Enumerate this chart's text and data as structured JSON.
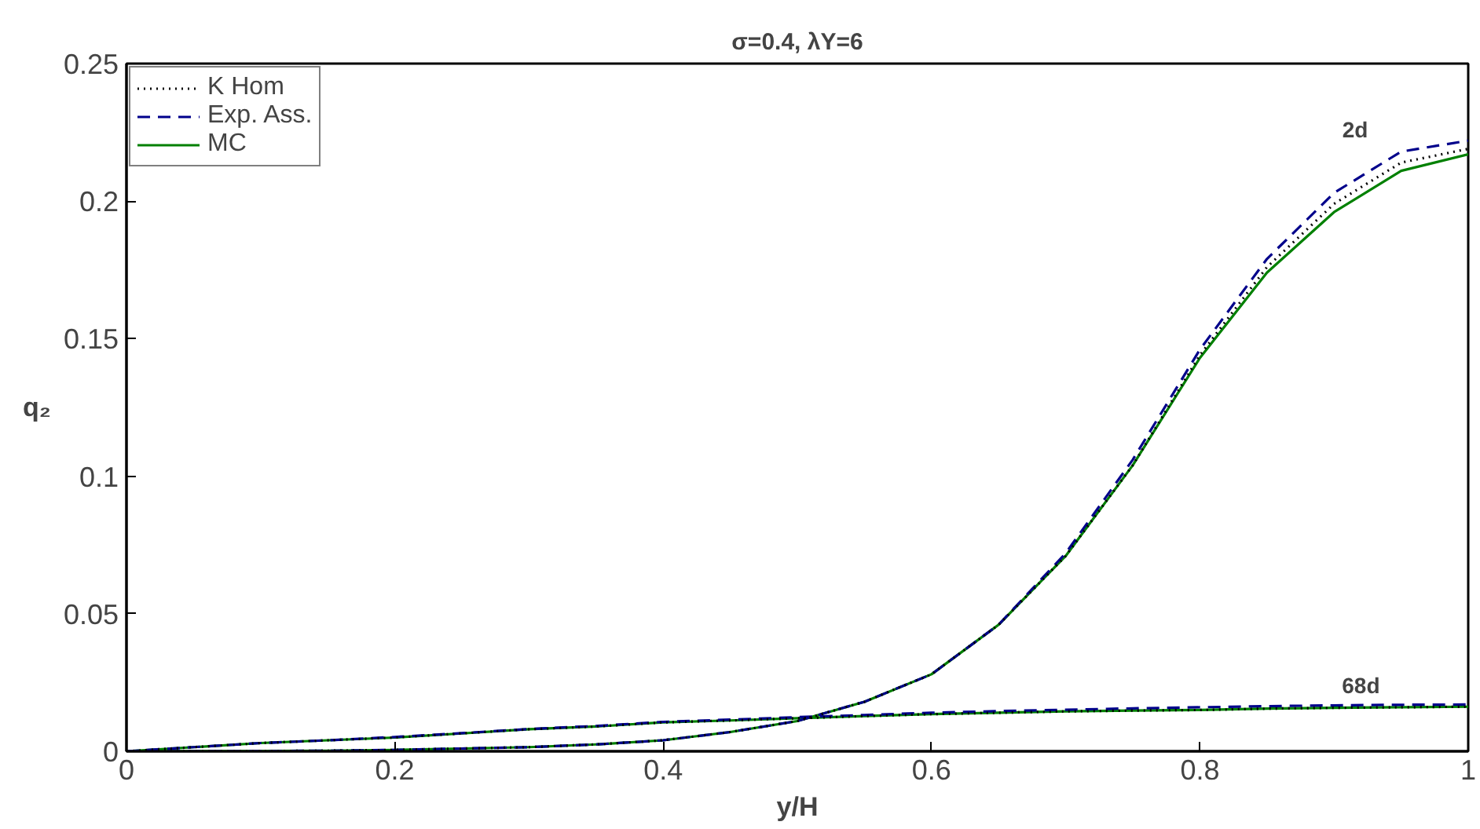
{
  "chart_data": {
    "type": "line",
    "title": "σ=0.4, λY=6",
    "xlabel": "y/H",
    "ylabel": "q₂",
    "x": [
      0,
      0.05,
      0.1,
      0.15,
      0.2,
      0.25,
      0.3,
      0.35,
      0.4,
      0.45,
      0.5,
      0.55,
      0.6,
      0.65,
      0.7,
      0.75,
      0.8,
      0.85,
      0.9,
      0.95,
      1.0
    ],
    "series": [
      {
        "name": "K Hom",
        "color": "#000000",
        "line_style": "dotted",
        "values": [
          0,
          0,
          0.0001,
          0.0002,
          0.0005,
          0.001,
          0.0015,
          0.0025,
          0.004,
          0.007,
          0.011,
          0.018,
          0.028,
          0.046,
          0.071,
          0.104,
          0.144,
          0.176,
          0.199,
          0.214,
          0.219
        ]
      },
      {
        "name": "Exp. Ass.",
        "color": "#00008b",
        "line_style": "dashed",
        "values": [
          0,
          0,
          0.0001,
          0.0002,
          0.0005,
          0.001,
          0.0015,
          0.0025,
          0.004,
          0.007,
          0.011,
          0.018,
          0.028,
          0.046,
          0.072,
          0.106,
          0.146,
          0.179,
          0.203,
          0.218,
          0.222
        ]
      },
      {
        "name": "MC",
        "color": "#008000",
        "line_style": "solid",
        "values": [
          0,
          0,
          0.0001,
          0.0002,
          0.0005,
          0.001,
          0.0015,
          0.0025,
          0.004,
          0.007,
          0.011,
          0.018,
          0.028,
          0.046,
          0.071,
          0.104,
          0.143,
          0.174,
          0.196,
          0.211,
          0.217
        ]
      },
      {
        "color": "#000000",
        "line_style": "dotted",
        "values": [
          0,
          0.0015,
          0.003,
          0.004,
          0.005,
          0.0065,
          0.008,
          0.009,
          0.0105,
          0.0112,
          0.012,
          0.0128,
          0.0135,
          0.014,
          0.0145,
          0.0148,
          0.015,
          0.0155,
          0.0158,
          0.016,
          0.0162
        ]
      },
      {
        "color": "#00008b",
        "line_style": "dashed",
        "values": [
          0,
          0.0015,
          0.003,
          0.004,
          0.0052,
          0.0066,
          0.0081,
          0.0092,
          0.0107,
          0.0115,
          0.0124,
          0.0132,
          0.014,
          0.0146,
          0.0151,
          0.0156,
          0.016,
          0.0164,
          0.0167,
          0.0169,
          0.017
        ]
      },
      {
        "color": "#008000",
        "line_style": "solid",
        "values": [
          0,
          0.0015,
          0.003,
          0.004,
          0.005,
          0.0065,
          0.008,
          0.009,
          0.0105,
          0.0112,
          0.012,
          0.0128,
          0.0135,
          0.014,
          0.0145,
          0.0148,
          0.015,
          0.0155,
          0.0158,
          0.016,
          0.0162
        ]
      }
    ],
    "annotations": [
      "2d",
      {
        "text": "68d",
        "x": 0.92,
        "y": 0.017
      }
    ],
    "xlim": [
      0,
      1
    ],
    "ylim": [
      0,
      0.25
    ],
    "xticks": [
      0,
      0.2,
      0.4,
      0.6,
      0.8,
      1
    ],
    "yticks": [
      0,
      0.05,
      0.1,
      0.15,
      0.2,
      0.25
    ],
    "grid": false,
    "legend": "top left",
    "marker": "none"
  }
}
